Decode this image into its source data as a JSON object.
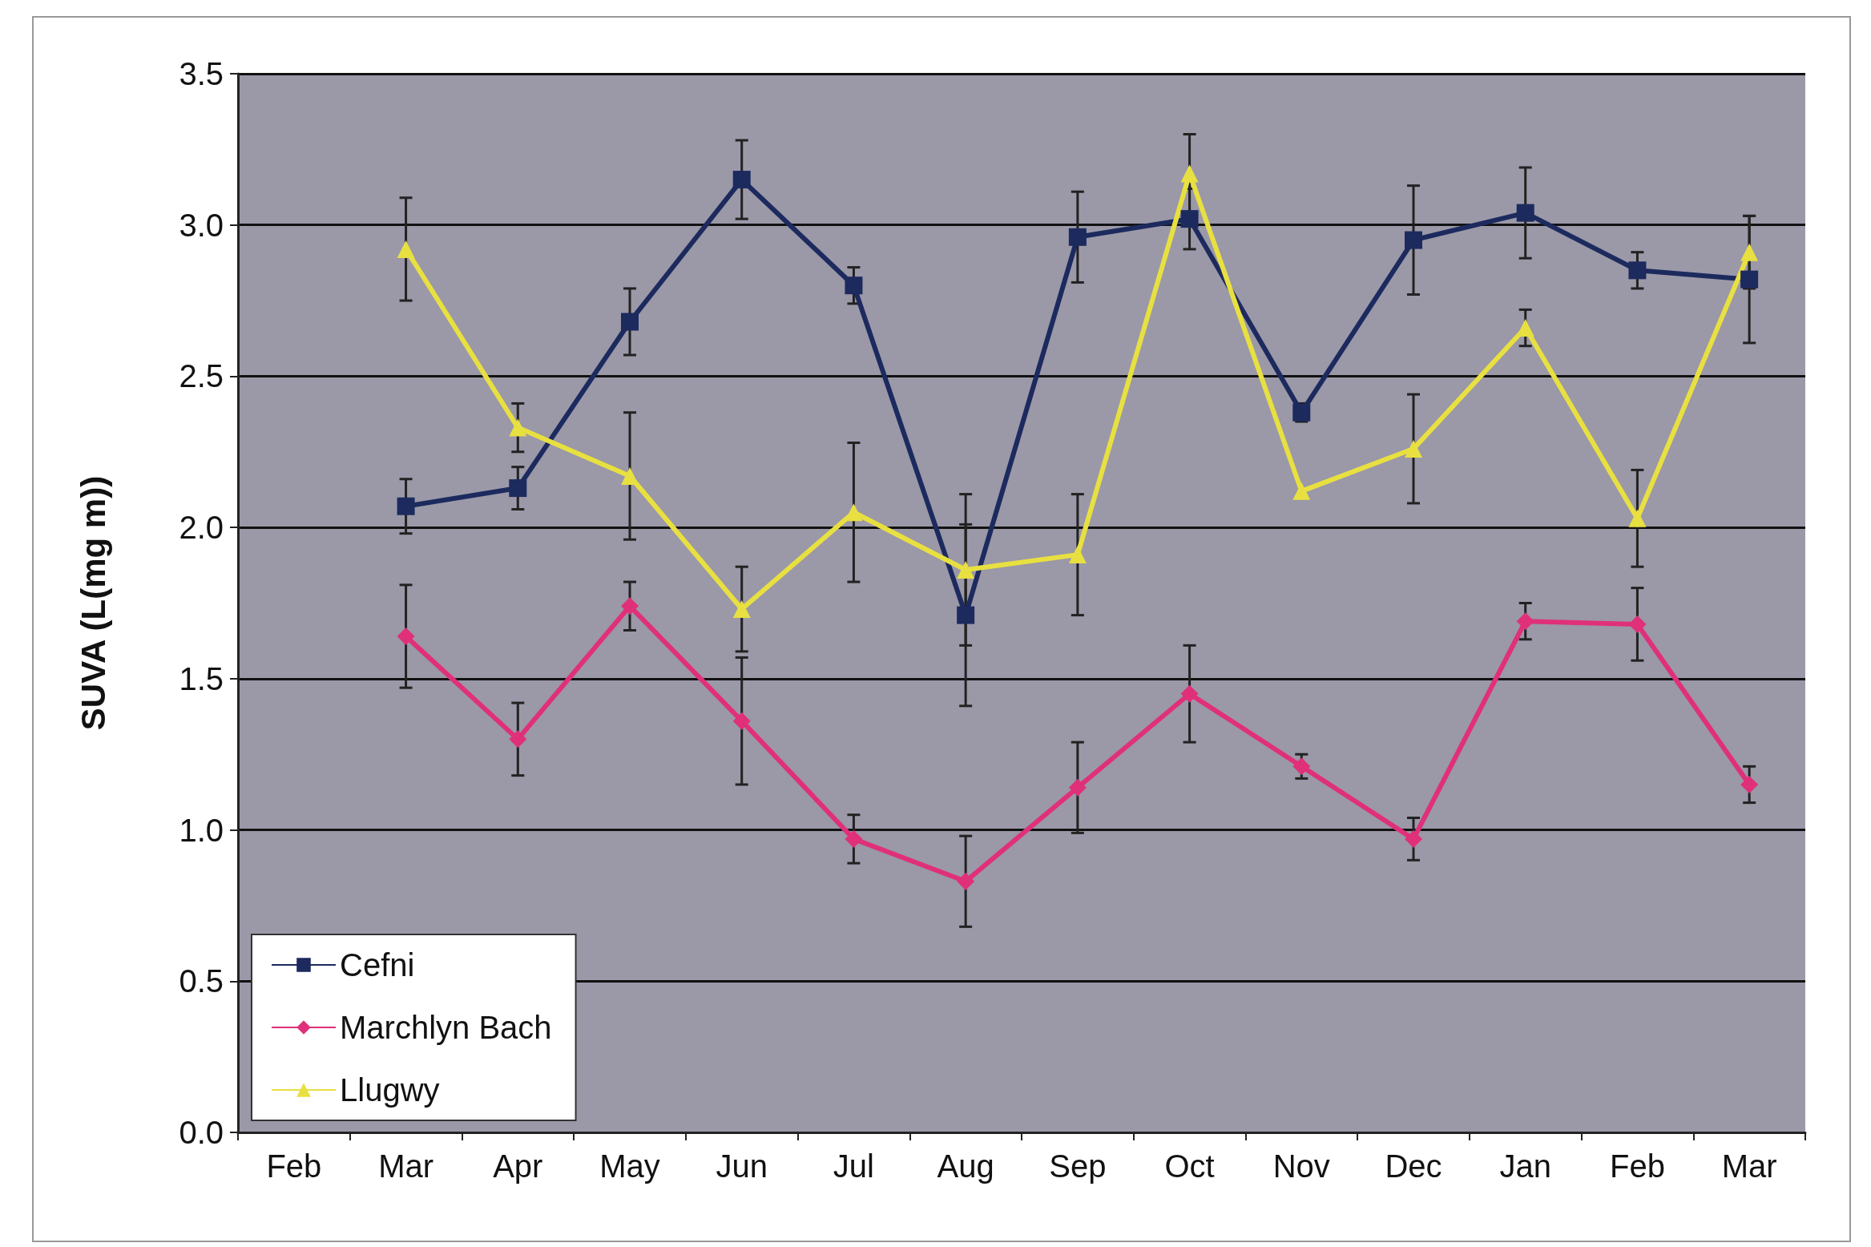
{
  "chart_data": {
    "type": "line",
    "ylabel": "SUVA (L(mg m))",
    "categories": [
      "Feb",
      "Mar",
      "Apr",
      "May",
      "Jun",
      "Jul",
      "Aug",
      "Sep",
      "Oct",
      "Nov",
      "Dec",
      "Jan",
      "Feb",
      "Mar"
    ],
    "ylim": [
      0,
      3.5
    ],
    "yticks": [
      {
        "value": 0,
        "label": "0.0"
      },
      0.5,
      {
        "value": 1,
        "label": "1.0"
      },
      1.5,
      {
        "value": 2,
        "label": "2.0"
      },
      2.5,
      {
        "value": 3,
        "label": "3.0"
      },
      3.5
    ],
    "grid": "y",
    "legend": "bottom left",
    "series": [
      {
        "name": "Cefni",
        "color": "#1c2a5e",
        "marker": "square",
        "values": [
          null,
          2.07,
          2.13,
          2.68,
          3.15,
          2.8,
          1.71,
          2.96,
          3.02,
          2.38,
          2.95,
          3.04,
          2.85,
          2.82
        ],
        "errors": [
          null,
          0.09,
          0.07,
          0.11,
          0.13,
          0.06,
          0.3,
          0.15,
          0.1,
          0.03,
          0.18,
          0.15,
          0.06,
          0.21
        ]
      },
      {
        "name": "Marchlyn Bach",
        "color": "#e0307a",
        "marker": "diamond",
        "values": [
          null,
          1.64,
          1.3,
          1.74,
          1.36,
          0.97,
          0.83,
          1.14,
          1.45,
          1.21,
          0.97,
          1.69,
          1.68,
          1.15
        ],
        "errors": [
          null,
          0.17,
          0.12,
          0.08,
          0.21,
          0.08,
          0.15,
          0.15,
          0.16,
          0.04,
          0.07,
          0.06,
          0.12,
          0.06
        ]
      },
      {
        "name": "Llugwy",
        "color": "#e8e040",
        "marker": "triangle",
        "values": [
          null,
          2.92,
          2.33,
          2.17,
          1.73,
          2.05,
          1.86,
          1.91,
          3.17,
          2.12,
          2.26,
          2.66,
          2.03,
          2.91
        ],
        "errors": [
          null,
          0.17,
          0.08,
          0.21,
          0.14,
          0.23,
          0.25,
          0.2,
          0.13,
          null,
          0.18,
          0.06,
          0.16,
          0.12
        ]
      }
    ]
  }
}
